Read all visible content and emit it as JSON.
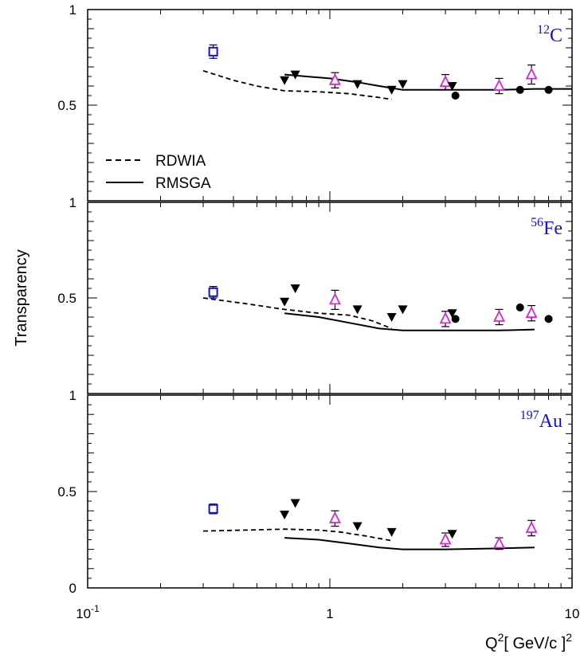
{
  "chart_data": {
    "type": "scatter",
    "ylabel": "Transparency",
    "xlabel": {
      "base": "Q",
      "sup": "2",
      "unit": "[ GeV/c ]",
      "unit_sup": "2"
    },
    "xscale": "log",
    "xlim": [
      0.1,
      10
    ],
    "x_ticks": [
      {
        "value": 0.1,
        "base": "10",
        "sup": "-1"
      },
      {
        "value": 1,
        "base": "1",
        "sup": ""
      },
      {
        "value": 10,
        "base": "10",
        "sup": ""
      }
    ],
    "legend": {
      "placement": "top panel, lower-left",
      "entries": [
        {
          "label": "RDWIA",
          "style": "dashed"
        },
        {
          "label": "RMSGA",
          "style": "solid"
        }
      ]
    },
    "colors": {
      "open_square": "#1010e0",
      "open_triangle": "#e020e0",
      "text_nucleus": "#1010e0"
    },
    "panels": [
      {
        "nucleus": {
          "mass": "12",
          "symbol": "C"
        },
        "ylim": [
          0,
          1
        ],
        "y_ticks": [
          {
            "value": 0.5,
            "label": "0.5"
          },
          {
            "value": 1,
            "label": "1"
          }
        ],
        "open_squares": [
          {
            "x": 0.33,
            "y": 0.78,
            "err": 0.035
          }
        ],
        "open_triangles": [
          {
            "x": 1.05,
            "y": 0.63,
            "err": 0.04
          },
          {
            "x": 3.0,
            "y": 0.62,
            "err": 0.04
          },
          {
            "x": 5.0,
            "y": 0.6,
            "err": 0.04
          },
          {
            "x": 6.8,
            "y": 0.66,
            "err": 0.05
          }
        ],
        "filled_triangles": [
          {
            "x": 0.65,
            "y": 0.63
          },
          {
            "x": 0.72,
            "y": 0.66
          },
          {
            "x": 1.3,
            "y": 0.61
          },
          {
            "x": 1.8,
            "y": 0.58
          },
          {
            "x": 2.0,
            "y": 0.61
          },
          {
            "x": 3.2,
            "y": 0.6
          }
        ],
        "filled_circles": [
          {
            "x": 3.3,
            "y": 0.55
          },
          {
            "x": 6.1,
            "y": 0.58
          },
          {
            "x": 8.0,
            "y": 0.58
          }
        ],
        "rdwia": {
          "x": [
            0.3,
            0.4,
            0.5,
            0.65,
            0.9,
            1.2,
            1.6,
            1.8
          ],
          "y": [
            0.68,
            0.63,
            0.6,
            0.575,
            0.57,
            0.56,
            0.54,
            0.53
          ]
        },
        "rmsga": {
          "x": [
            0.65,
            0.8,
            1.0,
            1.3,
            1.6,
            2.0,
            3.0,
            5.0,
            7.0,
            10.0
          ],
          "y": [
            0.66,
            0.65,
            0.64,
            0.62,
            0.6,
            0.58,
            0.58,
            0.58,
            0.585,
            0.585
          ]
        }
      },
      {
        "nucleus": {
          "mass": "56",
          "symbol": "Fe"
        },
        "ylim": [
          0,
          1
        ],
        "y_ticks": [
          {
            "value": 0.5,
            "label": "0.5"
          },
          {
            "value": 1,
            "label": "1"
          }
        ],
        "open_squares": [
          {
            "x": 0.33,
            "y": 0.53,
            "err": 0.03
          }
        ],
        "open_triangles": [
          {
            "x": 1.05,
            "y": 0.49,
            "err": 0.05
          },
          {
            "x": 3.0,
            "y": 0.39,
            "err": 0.04
          },
          {
            "x": 5.0,
            "y": 0.4,
            "err": 0.04
          },
          {
            "x": 6.8,
            "y": 0.42,
            "err": 0.04
          }
        ],
        "filled_triangles": [
          {
            "x": 0.65,
            "y": 0.48
          },
          {
            "x": 0.72,
            "y": 0.55
          },
          {
            "x": 1.3,
            "y": 0.44
          },
          {
            "x": 1.8,
            "y": 0.4
          },
          {
            "x": 2.0,
            "y": 0.44
          },
          {
            "x": 3.2,
            "y": 0.42
          }
        ],
        "filled_circles": [
          {
            "x": 3.3,
            "y": 0.39
          },
          {
            "x": 6.1,
            "y": 0.45
          },
          {
            "x": 8.0,
            "y": 0.39
          }
        ],
        "rdwia": {
          "x": [
            0.3,
            0.45,
            0.65,
            0.9,
            1.2,
            1.5,
            1.8
          ],
          "y": [
            0.5,
            0.47,
            0.44,
            0.42,
            0.41,
            0.38,
            0.34
          ]
        },
        "rmsga": {
          "x": [
            0.65,
            0.9,
            1.2,
            1.6,
            2.0,
            3.0,
            5.0,
            7.0
          ],
          "y": [
            0.42,
            0.4,
            0.37,
            0.34,
            0.33,
            0.33,
            0.33,
            0.335
          ]
        }
      },
      {
        "nucleus": {
          "mass": "197",
          "symbol": "Au"
        },
        "ylim": [
          0,
          1
        ],
        "y_ticks": [
          {
            "value": 0,
            "label": "0"
          },
          {
            "value": 0.5,
            "label": "0.5"
          },
          {
            "value": 1,
            "label": "1"
          }
        ],
        "open_squares": [
          {
            "x": 0.33,
            "y": 0.41,
            "err": 0.025
          }
        ],
        "open_triangles": [
          {
            "x": 1.05,
            "y": 0.36,
            "err": 0.04
          },
          {
            "x": 3.0,
            "y": 0.25,
            "err": 0.035
          },
          {
            "x": 5.0,
            "y": 0.23,
            "err": 0.03
          },
          {
            "x": 6.8,
            "y": 0.31,
            "err": 0.04
          }
        ],
        "filled_triangles": [
          {
            "x": 0.65,
            "y": 0.38
          },
          {
            "x": 0.72,
            "y": 0.44
          },
          {
            "x": 1.3,
            "y": 0.32
          },
          {
            "x": 1.8,
            "y": 0.29
          },
          {
            "x": 3.2,
            "y": 0.28
          }
        ],
        "filled_circles": [],
        "rdwia": {
          "x": [
            0.3,
            0.45,
            0.65,
            0.9,
            1.1,
            1.4,
            1.8
          ],
          "y": [
            0.295,
            0.3,
            0.305,
            0.3,
            0.29,
            0.27,
            0.245
          ]
        },
        "rmsga": {
          "x": [
            0.65,
            0.9,
            1.2,
            1.6,
            2.0,
            3.0,
            5.0,
            7.0
          ],
          "y": [
            0.26,
            0.25,
            0.23,
            0.21,
            0.2,
            0.2,
            0.205,
            0.21
          ]
        }
      }
    ]
  }
}
